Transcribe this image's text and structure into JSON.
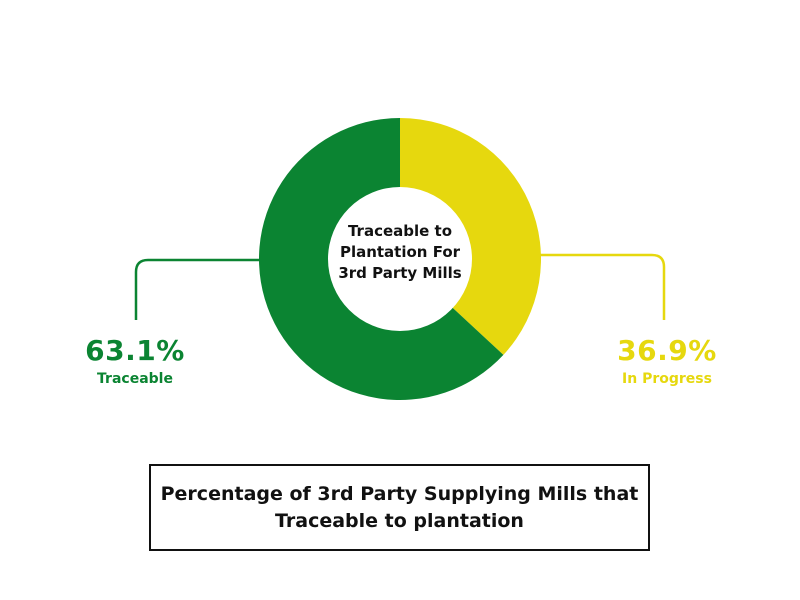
{
  "colors": {
    "traceable": "#0b8432",
    "in_progress": "#e6d80e",
    "text": "#111111"
  },
  "chart_data": {
    "type": "pie",
    "donut": true,
    "center_text": "Traceable to Plantation For 3rd Party Mills",
    "slices": [
      {
        "label": "Traceable",
        "value": 63.1,
        "display": "63.1%",
        "color": "#0b8432"
      },
      {
        "label": "In Progress",
        "value": 36.9,
        "display": "36.9%",
        "color": "#e6d80e"
      }
    ],
    "caption": "Percentage of 3rd Party Supplying Mills that Traceable to plantation"
  }
}
